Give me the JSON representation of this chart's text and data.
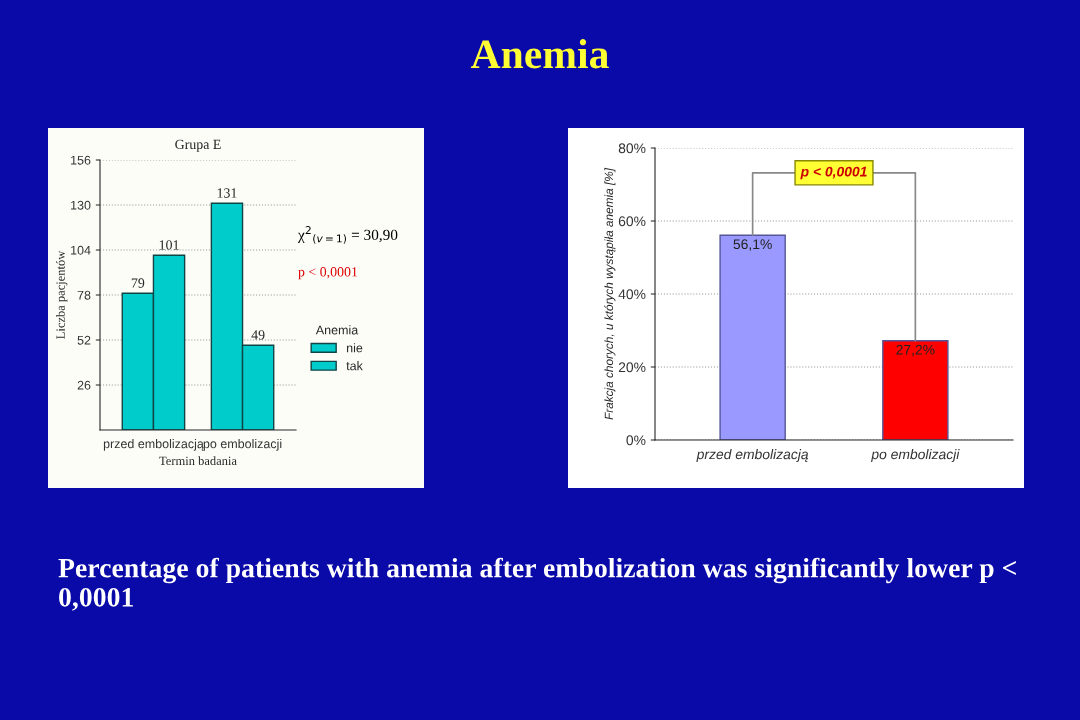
{
  "chart_data": [
    {
      "type": "bar",
      "title": "Grupa E",
      "xlabel": "Termin badania",
      "ylabel": "Liczba pacjentów",
      "legend_title": "Anemia",
      "categories": [
        "przed embolizacją",
        "po embolizacji"
      ],
      "series": [
        {
          "name": "nie",
          "color": "#00cccc",
          "values": [
            79,
            131
          ]
        },
        {
          "name": "tak",
          "color": "#00cccc",
          "values": [
            101,
            49
          ]
        }
      ],
      "ylim": [
        0,
        156
      ],
      "yticks": [
        26,
        52,
        78,
        104,
        130,
        156
      ],
      "grid": "y",
      "legend": "right",
      "data_labels": true,
      "annotations": [
        "χ$^{2}$$_{(v=1)}$ = 30,90",
        "p < 0,0001"
      ]
    },
    {
      "type": "bar",
      "ylabel": "Frakcja chorych, u których wystąpiła anemia [%]",
      "categories": [
        "przed embolizacją",
        "po embolizacji"
      ],
      "values": [
        56.1,
        27.2
      ],
      "colors": [
        "#9999ff",
        "#ff0000"
      ],
      "value_labels": [
        "56,1%",
        "27,2%"
      ],
      "ylim": [
        0,
        80
      ],
      "yticks": [
        {
          "value": 0,
          "label": "0%"
        },
        {
          "value": 20,
          "label": "20%"
        },
        {
          "value": 40,
          "label": "40%"
        },
        {
          "value": 60,
          "label": "60%"
        },
        {
          "value": 80,
          "label": "80%"
        }
      ],
      "grid": "y",
      "annotations": [
        "p < 0,0001"
      ]
    },
    {
      "type": "other",
      "title": "Anemia",
      "annotations": [
        "Percentage of patients with anemia after embolization was significantly lower p < 0,0001"
      ]
    }
  ]
}
